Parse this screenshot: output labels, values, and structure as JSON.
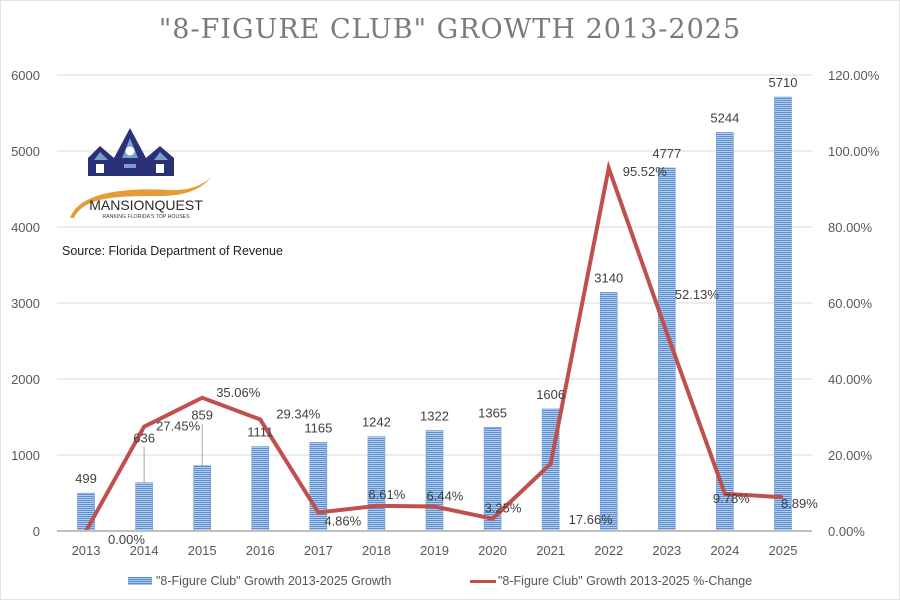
{
  "chart_data": {
    "type": "bar+line",
    "title": "\"8-FIGURE CLUB\" GROWTH 2013-2025",
    "source_note": "Source: Florida Department of Revenue",
    "logo": {
      "name": "MANSIONQUEST",
      "tagline": "RANKING FLORIDA'S TOP HOUSES"
    },
    "categories": [
      "2013",
      "2014",
      "2015",
      "2016",
      "2017",
      "2018",
      "2019",
      "2020",
      "2021",
      "2022",
      "2023",
      "2024",
      "2025"
    ],
    "series": [
      {
        "name": "\"8-Figure Club\" Growth 2013-2025 Growth",
        "type": "bar",
        "axis": "left",
        "color": "#5b8fd0",
        "values": [
          499,
          636,
          859,
          1111,
          1165,
          1242,
          1322,
          1365,
          1606,
          3140,
          4777,
          5244,
          5710
        ],
        "labels": [
          "499",
          "636",
          "859",
          "1111",
          "1165",
          "1242",
          "1322",
          "1365",
          "1606",
          "3140",
          "4777",
          "5244",
          "5710"
        ]
      },
      {
        "name": "\"8-Figure Club\" Growth 2013-2025 %-Change",
        "type": "line",
        "axis": "right",
        "color": "#c0504d",
        "values": [
          0.0,
          27.45,
          35.06,
          29.34,
          4.86,
          6.61,
          6.44,
          3.25,
          17.66,
          95.52,
          52.13,
          9.78,
          8.89
        ],
        "labels": [
          "0.00%",
          "27.45%",
          "35.06%",
          "29.34%",
          "4.86%",
          "6.61%",
          "6.44%",
          "3.25%",
          "17.66%",
          "95.52%",
          "52.13%",
          "9.78%",
          "8.89%"
        ]
      }
    ],
    "y_left": {
      "ylim": [
        0,
        6000
      ],
      "ticks": [
        0,
        1000,
        2000,
        3000,
        4000,
        5000,
        6000
      ],
      "tick_labels": [
        "0",
        "1000",
        "2000",
        "3000",
        "4000",
        "5000",
        "6000"
      ]
    },
    "y_right": {
      "ylim": [
        0,
        120
      ],
      "ticks": [
        0,
        20,
        40,
        60,
        80,
        100,
        120
      ],
      "tick_labels": [
        "0.00%",
        "20.00%",
        "40.00%",
        "60.00%",
        "80.00%",
        "100.00%",
        "120.00%"
      ]
    },
    "xlabel": "",
    "ylabel": "",
    "grid": true,
    "legend_position": "bottom"
  }
}
